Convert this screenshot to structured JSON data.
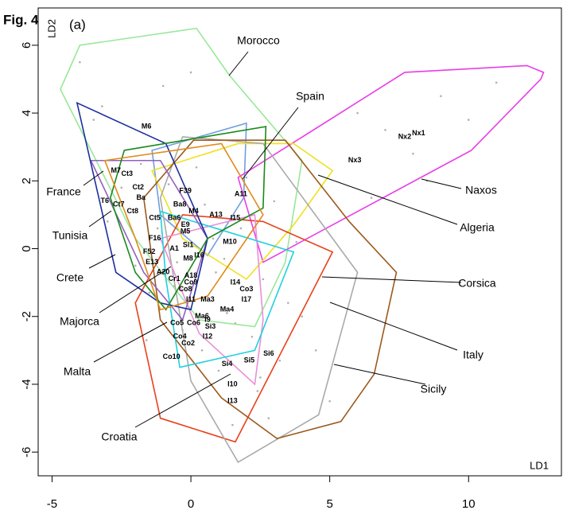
{
  "chart_data": {
    "type": "scatter",
    "figure_label": "Fig. 4",
    "panel_label": "(a)",
    "xlabel": "LD1",
    "ylabel": "LD2",
    "xlim": [
      -5.5,
      13.4
    ],
    "ylim": [
      -6.7,
      7.1
    ],
    "xticks": [
      -5,
      0,
      5,
      10
    ],
    "yticks": [
      -6,
      -4,
      -2,
      0,
      2,
      4,
      6
    ],
    "grid": false,
    "points": {
      "color": "#b0b0b0",
      "x": [
        -2.5,
        -1.8,
        -1.2,
        -0.8,
        -0.5,
        0.2,
        0.5,
        0.9,
        1.3,
        1.8,
        2.2,
        2.6,
        3.0,
        3.5,
        -2.0,
        -1.5,
        -1.0,
        -0.3,
        0.4,
        1.0,
        1.6,
        2.4,
        3.2,
        4.0,
        -3.5,
        -3.0,
        -1.0,
        0.0,
        1.5,
        2.8,
        4.5,
        5.0,
        6.5,
        7.0,
        8.5,
        9.0,
        10.0,
        11.0,
        6.0,
        8.0,
        -0.6,
        0.8,
        2.0,
        1.2,
        3.8,
        -1.6,
        -4.0,
        -3.2,
        0.6,
        2.5
      ],
      "y": [
        1.8,
        2.5,
        0.6,
        1.9,
        -0.4,
        2.4,
        1.3,
        -0.7,
        -1.9,
        0.6,
        -2.6,
        -0.9,
        1.4,
        -1.6,
        -0.5,
        -1.3,
        3.1,
        -2.4,
        -3.0,
        -3.6,
        -2.2,
        -4.2,
        -3.3,
        -2.0,
        3.8,
        0.8,
        4.8,
        5.2,
        -5.2,
        -5.0,
        -3.0,
        -4.5,
        1.5,
        3.5,
        2.0,
        4.5,
        3.8,
        4.9,
        4.0,
        2.8,
        -1.1,
        0.3,
        2.1,
        -0.3,
        0.2,
        -2.7,
        5.5,
        4.2,
        -1.4,
        -3.8
      ]
    },
    "hulls": [
      {
        "name": "Morocco",
        "color": "#98e898",
        "x": [
          -4.7,
          -4.0,
          0.2,
          1.4,
          4.0,
          3.4,
          2.3,
          0.3,
          -2.0
        ],
        "y": [
          4.7,
          6.0,
          6.5,
          5.1,
          2.6,
          -0.4,
          -2.3,
          -2.1,
          0.3
        ]
      },
      {
        "name": "Spain",
        "color": "#6f9fe0",
        "x": [
          -1.4,
          2.0,
          1.9,
          0.6,
          -1.1
        ],
        "y": [
          2.9,
          3.7,
          1.5,
          -0.2,
          1.0
        ]
      },
      {
        "name": "Naxos",
        "color": "#e83ee8",
        "x": [
          1.7,
          7.7,
          12.1,
          12.7,
          12.6,
          10.1,
          2.6
        ],
        "y": [
          2.1,
          5.2,
          5.4,
          5.2,
          5.0,
          2.9,
          -0.4
        ]
      },
      {
        "name": "Algeria",
        "color": "#f0e020",
        "x": [
          -1.4,
          1.7,
          3.7,
          5.1,
          3.7,
          2.0,
          -0.3
        ],
        "y": [
          2.3,
          3.1,
          3.1,
          2.3,
          0.7,
          -0.9,
          0.3
        ]
      },
      {
        "name": "Corsica",
        "color": "#e8401c",
        "x": [
          -2.0,
          -0.3,
          2.6,
          5.1,
          1.6,
          -1.1
        ],
        "y": [
          -1.6,
          1.0,
          0.8,
          -0.1,
          -5.7,
          -5.0
        ]
      },
      {
        "name": "Italy",
        "color": "#aaaaaa",
        "x": [
          -0.3,
          2.6,
          6.0,
          4.6,
          1.7,
          0.0,
          -1.1
        ],
        "y": [
          3.3,
          3.1,
          -0.7,
          -4.9,
          -6.3,
          -3.9,
          1.5
        ]
      },
      {
        "name": "Sicily",
        "color": "#9c5a1e",
        "x": [
          0.1,
          3.4,
          5.7,
          7.4,
          6.6,
          5.4,
          3.1,
          1.1,
          -1.1,
          -1.7
        ],
        "y": [
          3.2,
          3.2,
          0.8,
          -0.7,
          -3.7,
          -5.1,
          -5.6,
          -4.4,
          -2.1,
          1.5
        ]
      },
      {
        "name": "Croatia",
        "color": "#e890d8",
        "x": [
          -1.1,
          2.3,
          2.6,
          2.3,
          0.3
        ],
        "y": [
          0.3,
          1.0,
          -2.1,
          -4.0,
          -2.5
        ]
      },
      {
        "name": "Malta",
        "color": "#20d0e0",
        "x": [
          -1.1,
          3.7,
          2.3,
          -0.4,
          -0.9
        ],
        "y": [
          1.1,
          -0.1,
          -3.0,
          -3.5,
          -0.9
        ]
      },
      {
        "name": "Majorca",
        "color": "#9060c0",
        "x": [
          -3.6,
          -1.1,
          0.6,
          -0.3,
          -1.7
        ],
        "y": [
          2.6,
          2.6,
          0.3,
          -2.1,
          -0.7
        ]
      },
      {
        "name": "Crete",
        "color": "#1c2fa0",
        "x": [
          -4.1,
          -0.9,
          0.6,
          0.0,
          -1.1,
          -2.7
        ],
        "y": [
          4.3,
          3.1,
          0.3,
          -1.8,
          -1.6,
          -0.7
        ]
      },
      {
        "name": "Tunisia",
        "color": "#1a8a1a",
        "x": [
          -2.4,
          2.7,
          2.6,
          0.6,
          -0.9,
          -2.0,
          -2.9
        ],
        "y": [
          2.9,
          3.6,
          1.2,
          0.3,
          -1.8,
          -0.7,
          1.5
        ]
      },
      {
        "name": "France",
        "color": "#e08a1c",
        "x": [
          -3.1,
          1.1,
          2.6,
          0.6,
          -1.1,
          -2.0
        ],
        "y": [
          2.6,
          3.1,
          1.0,
          -1.4,
          -1.8,
          0.3
        ]
      }
    ],
    "sample_labels": [
      {
        "label": "M6",
        "x": -1.6,
        "y": 3.6
      },
      {
        "label": "Nx1",
        "x": 8.2,
        "y": 3.4
      },
      {
        "label": "Nx2",
        "x": 7.7,
        "y": 3.3
      },
      {
        "label": "Nx3",
        "x": 5.9,
        "y": 2.6
      },
      {
        "label": "M7",
        "x": -2.7,
        "y": 2.3
      },
      {
        "label": "Ct3",
        "x": -2.3,
        "y": 2.2
      },
      {
        "label": "Ct2",
        "x": -1.9,
        "y": 1.8
      },
      {
        "label": "F39",
        "x": -0.2,
        "y": 1.7
      },
      {
        "label": "Ba",
        "x": -1.8,
        "y": 1.5
      },
      {
        "label": "T6",
        "x": -3.1,
        "y": 1.4
      },
      {
        "label": "Ct7",
        "x": -2.6,
        "y": 1.3
      },
      {
        "label": "Ct8",
        "x": -2.1,
        "y": 1.1
      },
      {
        "label": "Ba8",
        "x": -0.4,
        "y": 1.3
      },
      {
        "label": "M4",
        "x": 0.1,
        "y": 1.1
      },
      {
        "label": "A13",
        "x": 0.9,
        "y": 1.0
      },
      {
        "label": "I15",
        "x": 1.6,
        "y": 0.9
      },
      {
        "label": "A11",
        "x": 1.8,
        "y": 1.6
      },
      {
        "label": "Ct5",
        "x": -1.3,
        "y": 0.9
      },
      {
        "label": "Ba6",
        "x": -0.6,
        "y": 0.9
      },
      {
        "label": "E9",
        "x": -0.2,
        "y": 0.7
      },
      {
        "label": "M5",
        "x": -0.2,
        "y": 0.5
      },
      {
        "label": "M10",
        "x": 1.4,
        "y": 0.2
      },
      {
        "label": "F16",
        "x": -1.3,
        "y": 0.3
      },
      {
        "label": "Si1",
        "x": -0.1,
        "y": 0.1
      },
      {
        "label": "A1",
        "x": -0.6,
        "y": 0.0
      },
      {
        "label": "I16",
        "x": 0.3,
        "y": -0.2
      },
      {
        "label": "F52",
        "x": -1.5,
        "y": -0.1
      },
      {
        "label": "M8",
        "x": -0.1,
        "y": -0.3
      },
      {
        "label": "E13",
        "x": -1.4,
        "y": -0.4
      },
      {
        "label": "A20",
        "x": -1.0,
        "y": -0.7
      },
      {
        "label": "A18",
        "x": 0.0,
        "y": -0.8
      },
      {
        "label": "Cr1",
        "x": -0.6,
        "y": -0.9
      },
      {
        "label": "Co9",
        "x": 0.0,
        "y": -1.0
      },
      {
        "label": "I14",
        "x": 1.6,
        "y": -1.0
      },
      {
        "label": "Co8",
        "x": -0.2,
        "y": -1.2
      },
      {
        "label": "Co3",
        "x": 2.0,
        "y": -1.2
      },
      {
        "label": "I11",
        "x": 0.0,
        "y": -1.5
      },
      {
        "label": "I17",
        "x": 2.0,
        "y": -1.5
      },
      {
        "label": "Ma3",
        "x": 0.6,
        "y": -1.5
      },
      {
        "label": "Ma4",
        "x": 1.3,
        "y": -1.8
      },
      {
        "label": "Ma6",
        "x": 0.4,
        "y": -2.0
      },
      {
        "label": "Co5",
        "x": -0.5,
        "y": -2.2
      },
      {
        "label": "Co6",
        "x": 0.1,
        "y": -2.2
      },
      {
        "label": "I9",
        "x": 0.6,
        "y": -2.1
      },
      {
        "label": "Si3",
        "x": 0.7,
        "y": -2.3
      },
      {
        "label": "Co4",
        "x": -0.4,
        "y": -2.6
      },
      {
        "label": "I12",
        "x": 0.6,
        "y": -2.6
      },
      {
        "label": "Co2",
        "x": -0.1,
        "y": -2.8
      },
      {
        "label": "Co10",
        "x": -0.7,
        "y": -3.2
      },
      {
        "label": "Si6",
        "x": 2.8,
        "y": -3.1
      },
      {
        "label": "Si4",
        "x": 1.3,
        "y": -3.4
      },
      {
        "label": "Si5",
        "x": 2.1,
        "y": -3.3
      },
      {
        "label": "I10",
        "x": 1.5,
        "y": -4.0
      },
      {
        "label": "I13",
        "x": 1.5,
        "y": -4.5
      }
    ]
  }
}
